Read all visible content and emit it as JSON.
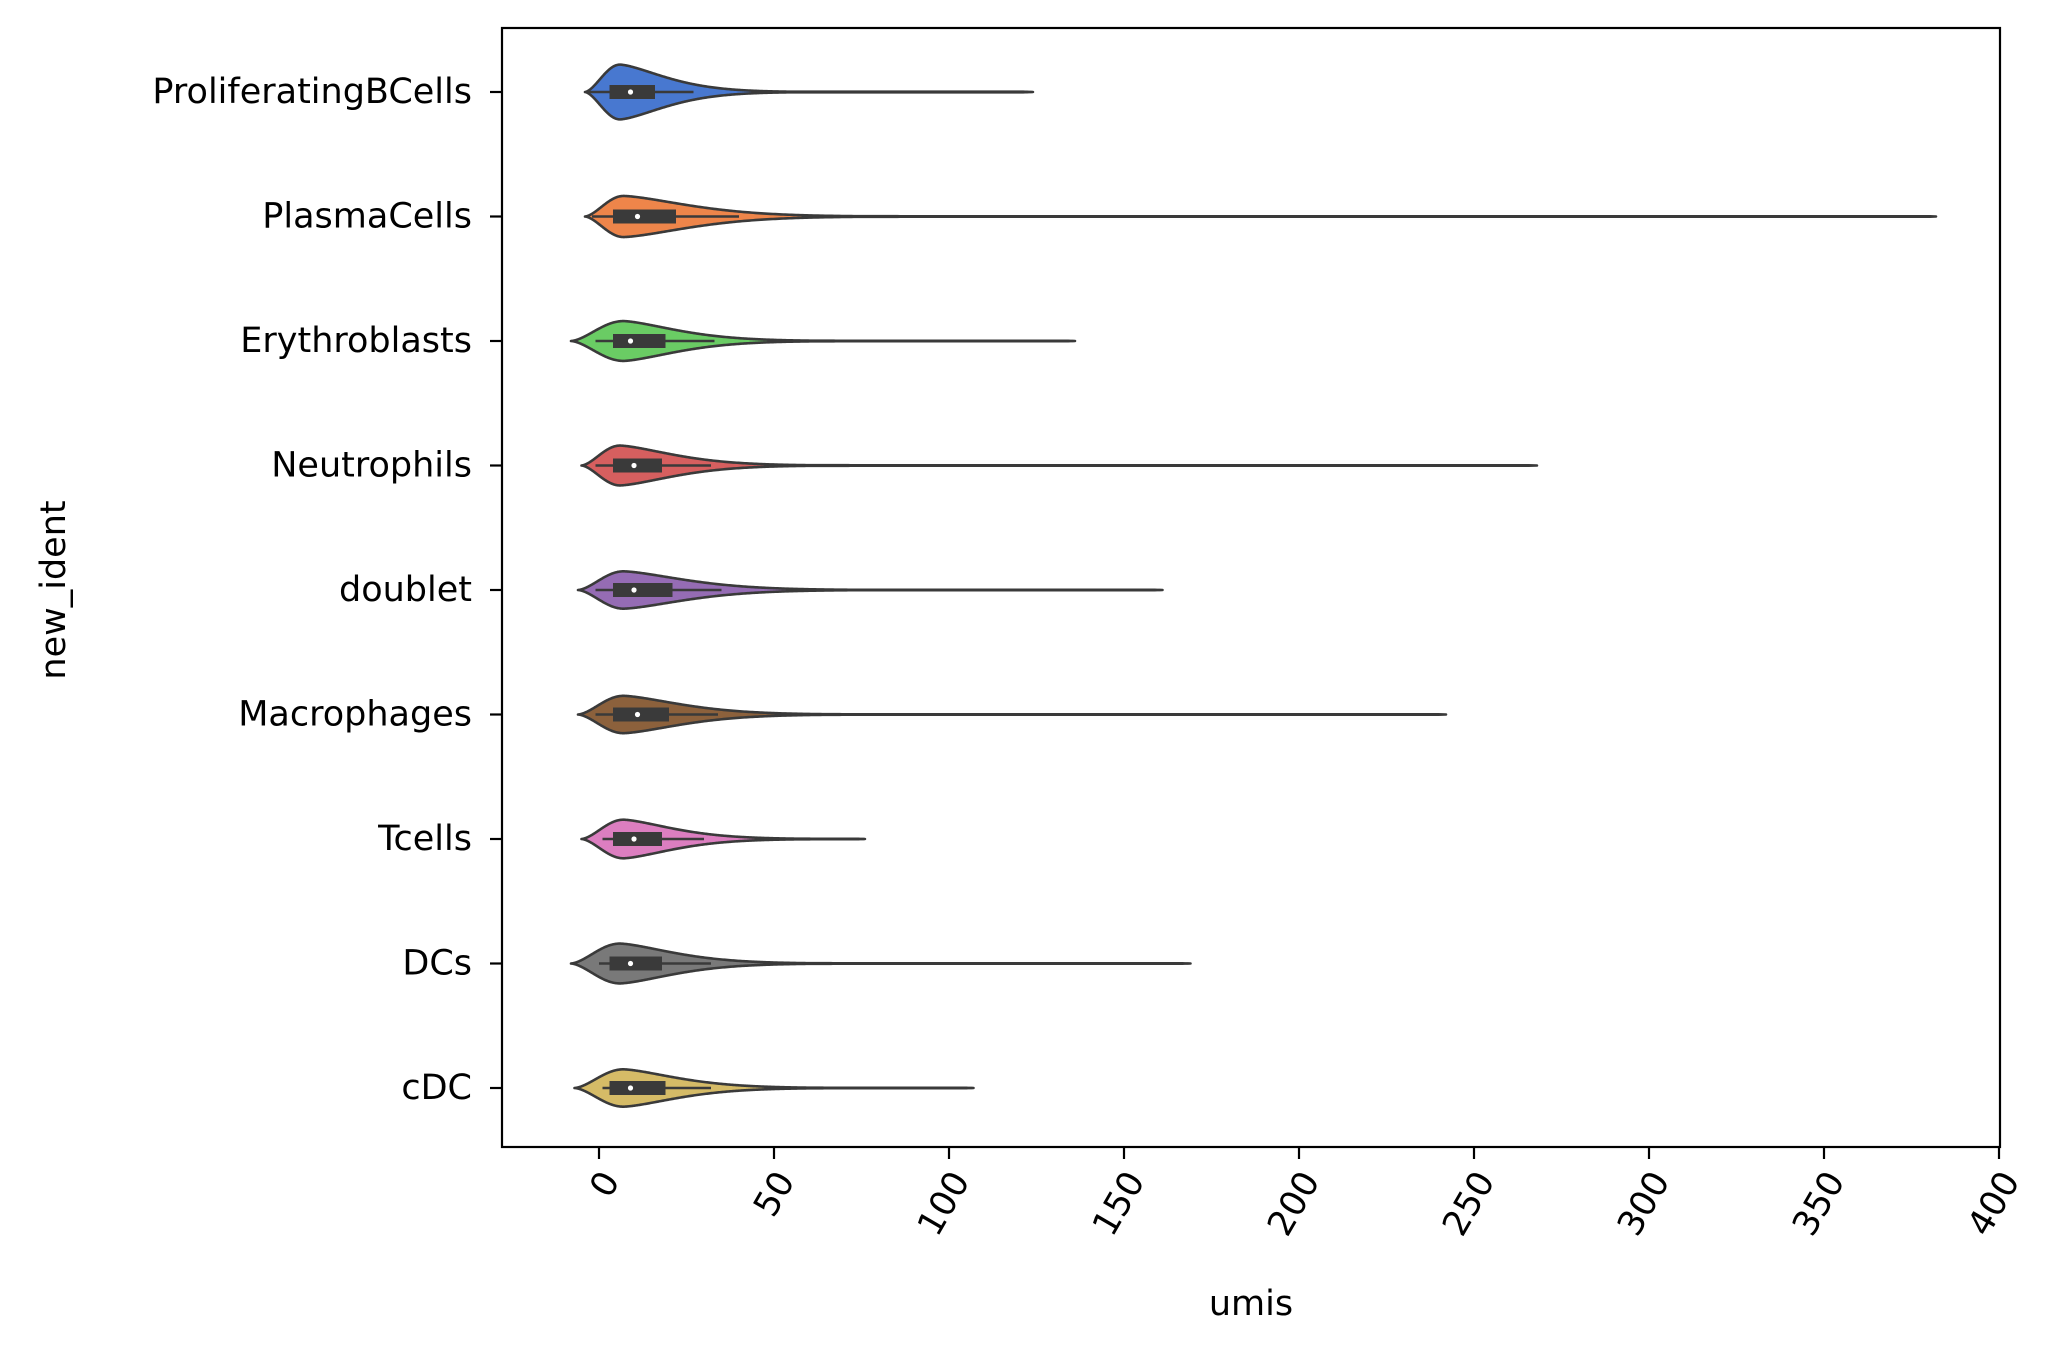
{
  "chart_data": {
    "type": "violin",
    "orientation": "horizontal",
    "xlabel": "umis",
    "ylabel": "new_ident",
    "xlim": [
      -27,
      402
    ],
    "xticks": [
      0,
      50,
      100,
      150,
      200,
      250,
      300,
      350,
      400
    ],
    "xtick_rotation": -60,
    "grid": false,
    "legend": "none",
    "categories": [
      "ProliferatingBCells",
      "PlasmaCells",
      "Erythroblasts",
      "Neutrophils",
      "doublet",
      "Macrophages",
      "Tcells",
      "DCs",
      "cDC"
    ],
    "colors": [
      "#4878d0",
      "#ee854a",
      "#6acc64",
      "#d65f5f",
      "#956cb4",
      "#8c613c",
      "#dc7ec0",
      "#797979",
      "#d5bb67"
    ],
    "series": [
      {
        "category": "ProliferatingBCells",
        "min": -4,
        "q1": 3,
        "median": 9,
        "q3": 16,
        "whisker_low": -3,
        "whisker_high": 27,
        "max": 124,
        "mode": 6,
        "width": 0.44,
        "tail_end": 45
      },
      {
        "category": "PlasmaCells",
        "min": -4,
        "q1": 4,
        "median": 11,
        "q3": 22,
        "whisker_low": -2,
        "whisker_high": 40,
        "max": 382,
        "mode": 7,
        "width": 0.33,
        "tail_end": 70
      },
      {
        "category": "Erythroblasts",
        "min": -8,
        "q1": 4,
        "median": 9,
        "q3": 19,
        "whisker_low": -1,
        "whisker_high": 33,
        "max": 136,
        "mode": 7,
        "width": 0.32,
        "tail_end": 55
      },
      {
        "category": "Neutrophils",
        "min": -5,
        "q1": 4,
        "median": 10,
        "q3": 18,
        "whisker_low": -1,
        "whisker_high": 32,
        "max": 268,
        "mode": 6,
        "width": 0.32,
        "tail_end": 60
      },
      {
        "category": "doublet",
        "min": -6,
        "q1": 4,
        "median": 10,
        "q3": 21,
        "whisker_low": -1,
        "whisker_high": 35,
        "max": 161,
        "mode": 7,
        "width": 0.3,
        "tail_end": 60
      },
      {
        "category": "Macrophages",
        "min": -6,
        "q1": 4,
        "median": 11,
        "q3": 20,
        "whisker_low": -1,
        "whisker_high": 34,
        "max": 242,
        "mode": 7,
        "width": 0.3,
        "tail_end": 60
      },
      {
        "category": "Tcells",
        "min": -5,
        "q1": 4,
        "median": 10,
        "q3": 18,
        "whisker_low": 1,
        "whisker_high": 30,
        "max": 76,
        "mode": 7,
        "width": 0.31,
        "tail_end": 50
      },
      {
        "category": "DCs",
        "min": -8,
        "q1": 3,
        "median": 9,
        "q3": 18,
        "whisker_low": 0,
        "whisker_high": 32,
        "max": 169,
        "mode": 6,
        "width": 0.32,
        "tail_end": 55
      },
      {
        "category": "cDC",
        "min": -7,
        "q1": 3,
        "median": 9,
        "q3": 19,
        "whisker_low": 1,
        "whisker_high": 32,
        "max": 107,
        "mode": 7,
        "width": 0.3,
        "tail_end": 55
      }
    ]
  }
}
